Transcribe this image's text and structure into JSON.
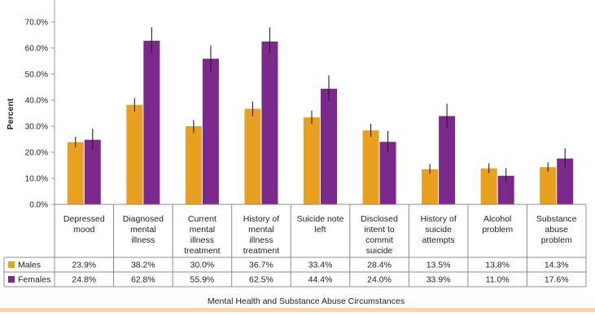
{
  "chart_data": {
    "type": "bar",
    "ylabel": "Percent",
    "xlabel": "Mental Health and Substance Abuse Circumstances",
    "ylim": [
      0,
      70
    ],
    "yticks": [
      "0.0%",
      "10.0%",
      "20.0%",
      "30.0%",
      "40.0%",
      "50.0%",
      "60.0%",
      "70.0%"
    ],
    "categories": [
      [
        "Depressed",
        "mood"
      ],
      [
        "Diagnosed",
        "mental",
        "illness"
      ],
      [
        "Current",
        "mental",
        "illness",
        "treatment"
      ],
      [
        "History of",
        "mental",
        "illness",
        "treatment"
      ],
      [
        "Suicide note",
        "left"
      ],
      [
        "Disclosed",
        "intent to",
        "commit",
        "suicide"
      ],
      [
        "History of",
        "suicide",
        "attempts"
      ],
      [
        "Alcohol",
        "problem"
      ],
      [
        "Substance",
        "abuse",
        "problem"
      ]
    ],
    "series": [
      {
        "name": "Males",
        "color": "#e8a020",
        "values": [
          23.9,
          38.2,
          30.0,
          36.7,
          33.4,
          28.4,
          13.5,
          13.8,
          14.3
        ],
        "labels": [
          "23.9%",
          "38.2%",
          "30.0%",
          "36.7%",
          "33.4%",
          "28.4%",
          "13.5%",
          "13.8%",
          "14.3%"
        ],
        "err_low": [
          21.9,
          35.6,
          27.4,
          33.8,
          30.8,
          26.0,
          11.8,
          12.0,
          12.6
        ],
        "err_high": [
          26.0,
          40.8,
          32.4,
          39.5,
          36.0,
          31.0,
          15.5,
          15.8,
          16.1
        ]
      },
      {
        "name": "Females",
        "color": "#7b2a8c",
        "values": [
          24.8,
          62.8,
          55.9,
          62.5,
          44.4,
          24.0,
          33.9,
          11.0,
          17.6
        ],
        "labels": [
          "24.8%",
          "62.8%",
          "55.9%",
          "62.5%",
          "44.4%",
          "24.0%",
          "33.9%",
          "11.0%",
          "17.6%"
        ],
        "err_low": [
          21.0,
          58.0,
          51.0,
          58.0,
          39.8,
          19.9,
          29.3,
          8.3,
          14.2
        ],
        "err_high": [
          29.0,
          68.0,
          61.0,
          67.9,
          49.5,
          28.2,
          38.6,
          13.9,
          21.5
        ]
      }
    ],
    "grid": false,
    "legend": "table rows below chart"
  }
}
